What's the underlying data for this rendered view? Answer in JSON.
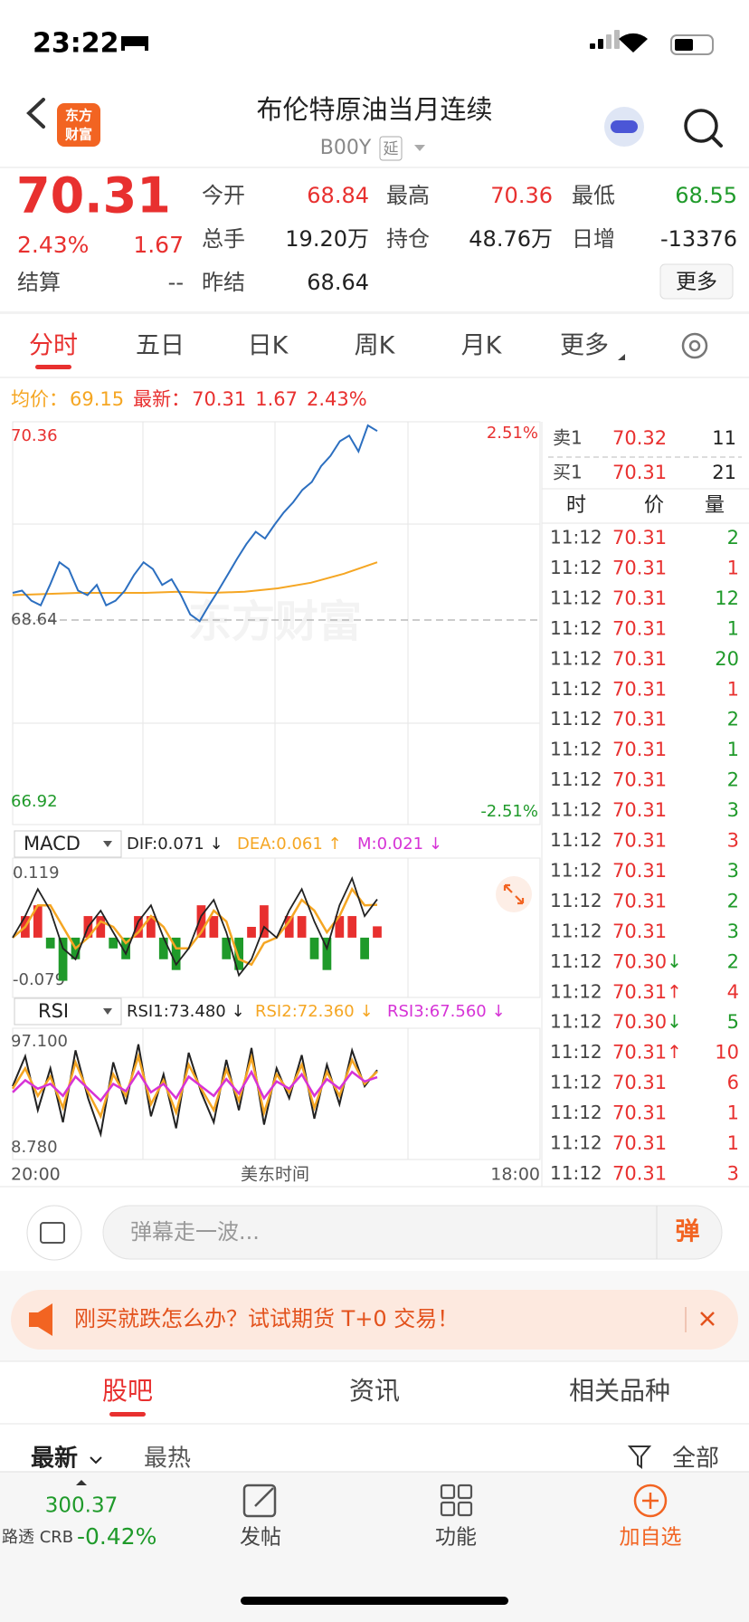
{
  "status": {
    "time": "23:22"
  },
  "header": {
    "logo": [
      "东方",
      "财富"
    ],
    "title": "布伦特原油当月连续",
    "code": "B00Y",
    "tag": "延"
  },
  "quote": {
    "price": "70.31",
    "change_pct": "2.43%",
    "change": "1.67",
    "settle_label": "结算",
    "settle": "--",
    "fields": [
      {
        "label": "今开",
        "value": "68.84",
        "color": "#e8302f"
      },
      {
        "label": "最高",
        "value": "70.36",
        "color": "#e8302f"
      },
      {
        "label": "最低",
        "value": "68.55",
        "color": "#1f9a2a"
      },
      {
        "label": "总手",
        "value": "19.20万",
        "color": "#222222"
      },
      {
        "label": "持仓",
        "value": "48.76万",
        "color": "#222222"
      },
      {
        "label": "日增",
        "value": "-13376",
        "color": "#222222"
      },
      {
        "label": "昨结",
        "value": "68.64",
        "color": "#222222"
      }
    ],
    "more": "更多"
  },
  "tabs": {
    "items": [
      "分时",
      "五日",
      "日K",
      "周K",
      "月K",
      "更多"
    ],
    "active": 0
  },
  "info": {
    "avg_label": "均价：",
    "avg": "69.15",
    "latest_label": "最新：",
    "latest": "70.31",
    "change": "1.67",
    "change_pct": "2.43%"
  },
  "intraday": {
    "ylim": [
      66.92,
      70.36
    ],
    "yticks": [
      66.92,
      68.64,
      70.36
    ],
    "pct_top": "2.51%",
    "pct_bottom": "-2.51%",
    "watermark": "东方财富",
    "price": [
      68.88,
      68.9,
      68.81,
      68.77,
      68.95,
      69.15,
      69.09,
      68.9,
      68.86,
      68.95,
      68.77,
      68.81,
      68.9,
      69.04,
      69.15,
      69.09,
      68.95,
      69.0,
      68.86,
      68.69,
      68.63,
      68.77,
      68.9,
      69.04,
      69.18,
      69.31,
      69.42,
      69.36,
      69.48,
      69.59,
      69.68,
      69.79,
      69.86,
      70.0,
      70.09,
      70.22,
      70.27,
      70.13,
      70.36,
      70.31
    ],
    "avg": [
      68.86,
      68.87,
      68.88,
      68.88,
      68.88,
      68.89,
      68.88,
      68.89,
      68.92,
      68.97,
      69.05,
      69.15
    ],
    "price_color": "#2c6fc0",
    "avg_color": "#f5a623",
    "x_labels": [
      "20:00",
      "美东时间",
      "18:00"
    ]
  },
  "macd": {
    "name": "MACD",
    "dif_label": "DIF:0.071 ↓",
    "dea_label": "DEA:0.061 ↑",
    "m_label": "M:0.021 ↓",
    "ylim": [
      -0.079,
      0.119
    ],
    "yticks": [
      -0.079,
      0.119
    ],
    "dif": [
      0.0,
      0.04,
      0.09,
      0.05,
      -0.02,
      -0.04,
      0.02,
      0.05,
      0.01,
      -0.03,
      0.03,
      0.06,
      0.0,
      -0.05,
      -0.02,
      0.04,
      0.07,
      0.01,
      -0.07,
      -0.04,
      0.02,
      0.0,
      0.05,
      0.09,
      0.03,
      -0.02,
      0.06,
      0.11,
      0.04,
      0.071
    ],
    "dea": [
      0.0,
      0.02,
      0.06,
      0.06,
      0.02,
      -0.02,
      0.0,
      0.03,
      0.02,
      -0.01,
      0.01,
      0.04,
      0.02,
      -0.02,
      -0.02,
      0.01,
      0.05,
      0.03,
      -0.04,
      -0.05,
      -0.01,
      0.0,
      0.03,
      0.07,
      0.05,
      0.01,
      0.04,
      0.09,
      0.06,
      0.061
    ],
    "m": [
      0,
      0.04,
      0.06,
      -0.02,
      -0.08,
      -0.04,
      0.04,
      0.04,
      -0.02,
      -0.04,
      0.04,
      0.04,
      -0.04,
      -0.06,
      0,
      0.06,
      0.04,
      -0.04,
      -0.06,
      0.02,
      0.06,
      0,
      0.04,
      0.04,
      -0.04,
      -0.06,
      0.04,
      0.04,
      -0.04,
      0.021
    ]
  },
  "rsi": {
    "name": "RSI",
    "rsi1_label": "RSI1:73.480 ↓",
    "rsi2_label": "RSI2:72.360 ↓",
    "rsi3_label": "RSI3:67.560 ↓",
    "ylim": [
      8.78,
      97.1
    ],
    "yticks": [
      {
        "value": 8.78,
        "label": "8.780"
      },
      {
        "value": 97.1,
        "label": "97.100"
      }
    ],
    "rsi1": [
      60,
      85,
      40,
      75,
      30,
      90,
      50,
      20,
      80,
      45,
      95,
      35,
      70,
      25,
      88,
      55,
      30,
      82,
      40,
      92,
      28,
      75,
      50,
      86,
      33,
      78,
      45,
      90,
      60,
      73.48
    ],
    "rsi2": [
      58,
      75,
      52,
      68,
      42,
      80,
      55,
      35,
      70,
      52,
      85,
      45,
      65,
      38,
      78,
      58,
      40,
      74,
      48,
      84,
      38,
      70,
      55,
      78,
      42,
      72,
      52,
      82,
      62,
      72.36
    ],
    "rsi3": [
      55,
      65,
      58,
      62,
      52,
      68,
      58,
      48,
      62,
      56,
      72,
      55,
      62,
      50,
      68,
      60,
      52,
      66,
      54,
      72,
      50,
      64,
      58,
      70,
      52,
      66,
      58,
      72,
      64,
      67.56
    ]
  },
  "orderbook": {
    "sell": {
      "label": "卖1",
      "price": "70.32",
      "vol": "11"
    },
    "buy": {
      "label": "买1",
      "price": "70.31",
      "vol": "21"
    },
    "headers": [
      "时",
      "价",
      "量"
    ],
    "trades": [
      {
        "time": "11:12",
        "price": "70.31",
        "vol": "2",
        "color": "#1f9a2a"
      },
      {
        "time": "11:12",
        "price": "70.31",
        "vol": "1",
        "color": "#e8302f"
      },
      {
        "time": "11:12",
        "price": "70.31",
        "vol": "12",
        "color": "#1f9a2a"
      },
      {
        "time": "11:12",
        "price": "70.31",
        "vol": "1",
        "color": "#1f9a2a"
      },
      {
        "time": "11:12",
        "price": "70.31",
        "vol": "20",
        "color": "#1f9a2a"
      },
      {
        "time": "11:12",
        "price": "70.31",
        "vol": "1",
        "color": "#e8302f"
      },
      {
        "time": "11:12",
        "price": "70.31",
        "vol": "2",
        "color": "#1f9a2a"
      },
      {
        "time": "11:12",
        "price": "70.31",
        "vol": "1",
        "color": "#1f9a2a"
      },
      {
        "time": "11:12",
        "price": "70.31",
        "vol": "2",
        "color": "#1f9a2a"
      },
      {
        "time": "11:12",
        "price": "70.31",
        "vol": "3",
        "color": "#1f9a2a"
      },
      {
        "time": "11:12",
        "price": "70.31",
        "vol": "3",
        "color": "#e8302f"
      },
      {
        "time": "11:12",
        "price": "70.31",
        "vol": "3",
        "color": "#1f9a2a"
      },
      {
        "time": "11:12",
        "price": "70.31",
        "vol": "2",
        "color": "#1f9a2a"
      },
      {
        "time": "11:12",
        "price": "70.31",
        "vol": "3",
        "color": "#1f9a2a"
      },
      {
        "time": "11:12",
        "price": "70.30",
        "arrow": "↓",
        "arrow_color": "#1f9a2a",
        "vol": "2",
        "color": "#1f9a2a"
      },
      {
        "time": "11:12",
        "price": "70.31",
        "arrow": "↑",
        "arrow_color": "#e8302f",
        "vol": "4",
        "color": "#e8302f"
      },
      {
        "time": "11:12",
        "price": "70.30",
        "arrow": "↓",
        "arrow_color": "#1f9a2a",
        "vol": "5",
        "color": "#1f9a2a"
      },
      {
        "time": "11:12",
        "price": "70.31",
        "arrow": "↑",
        "arrow_color": "#e8302f",
        "vol": "10",
        "color": "#e8302f"
      },
      {
        "time": "11:12",
        "price": "70.31",
        "vol": "6",
        "color": "#e8302f"
      },
      {
        "time": "11:12",
        "price": "70.31",
        "vol": "1",
        "color": "#e8302f"
      },
      {
        "time": "11:12",
        "price": "70.31",
        "vol": "1",
        "color": "#e8302f"
      },
      {
        "time": "11:12",
        "price": "70.31",
        "vol": "3",
        "color": "#e8302f"
      }
    ]
  },
  "comment": {
    "placeholder": "弹幕走一波...",
    "button": "弹"
  },
  "banner": {
    "text": "刚买就跌怎么办？试试期货 T+0 交易！"
  },
  "sections": {
    "items": [
      "股吧",
      "资讯",
      "相关品种"
    ],
    "active": 0
  },
  "sort": {
    "latest": "最新",
    "hot": "最热",
    "all": "全部"
  },
  "bottom": {
    "index_value": "300.37",
    "index_name": "路透 CRB",
    "index_change": "-0.42%",
    "post": "发帖",
    "tools": "功能",
    "add": "加自选"
  }
}
